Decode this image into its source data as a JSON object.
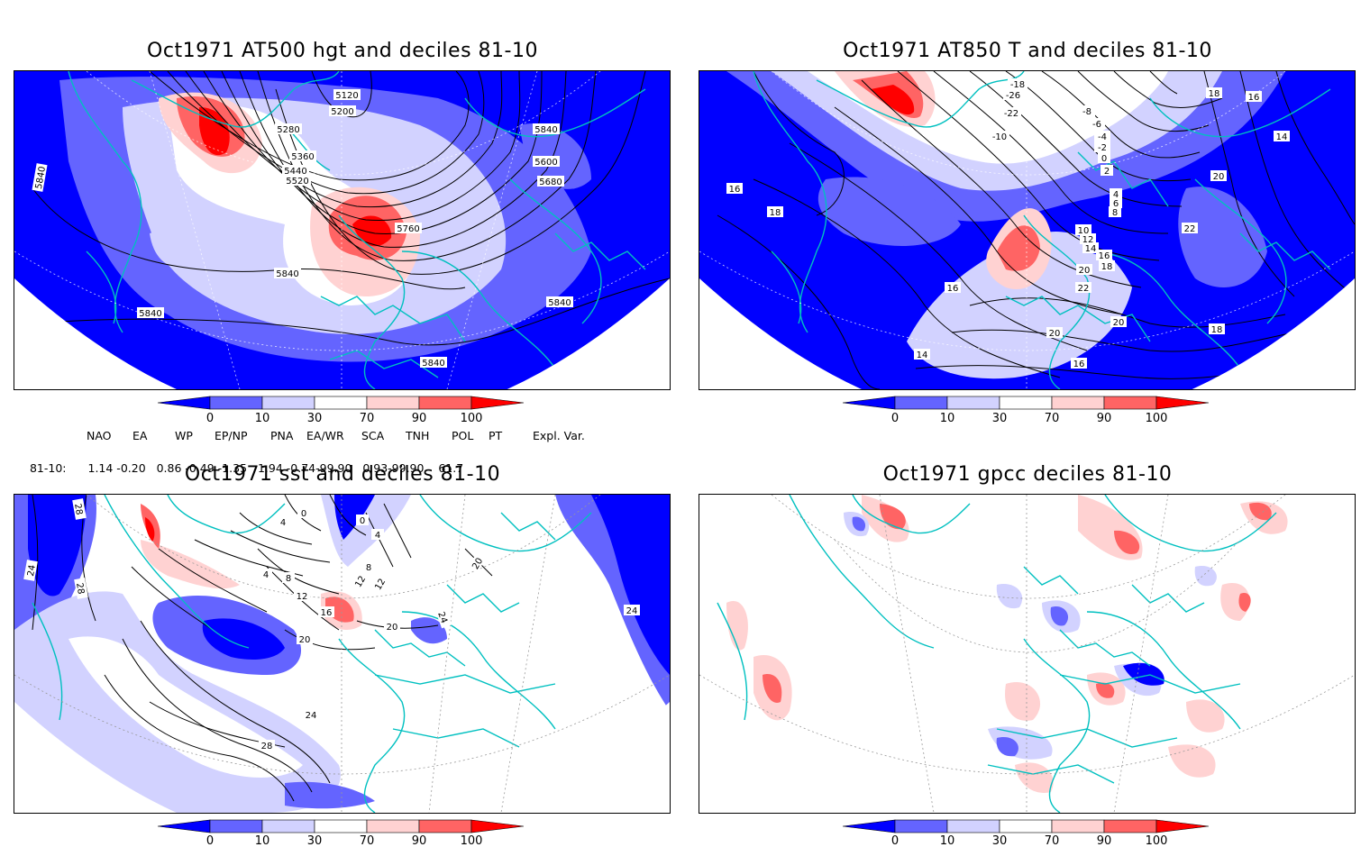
{
  "panels": [
    {
      "title": "Oct1971 AT500 hgt and deciles 81-10",
      "contour_labels": [
        "5120",
        "5200",
        "5280",
        "5360",
        "5440",
        "5520",
        "5600",
        "5680",
        "5760",
        "5840",
        "5840",
        "5840",
        "5840",
        "5840",
        "5840"
      ]
    },
    {
      "title": "Oct1971 AT850 T and deciles 81-10",
      "contour_labels": [
        "-18",
        "-26",
        "-22",
        "-10",
        "-8",
        "-6",
        "-4",
        "-2",
        "0",
        "2",
        "4",
        "6",
        "8",
        "10",
        "12",
        "14",
        "16",
        "16",
        "16",
        "18",
        "18",
        "18",
        "20",
        "20",
        "20",
        "20",
        "22",
        "22",
        "16",
        "14",
        "14",
        "16",
        "18"
      ]
    },
    {
      "title": "Oct1971 sst and deciles 81-10",
      "contour_labels": [
        "28",
        "24",
        "28",
        "4",
        "0",
        "4",
        "8",
        "12",
        "16",
        "20",
        "20",
        "24",
        "24",
        "28",
        "0",
        "4",
        "8",
        "12",
        "12",
        "20",
        "24"
      ]
    },
    {
      "title": "Oct1971 gpcc deciles 81-10",
      "contour_labels": []
    }
  ],
  "colorbar": {
    "ticks": [
      "0",
      "10",
      "30",
      "70",
      "90",
      "100"
    ],
    "colors": [
      "#0000ff",
      "#6464ff",
      "#d2d2ff",
      "#ffffff",
      "#ffd2d2",
      "#ff6464",
      "#ff0000"
    ]
  },
  "indices": {
    "headers": [
      "NAO",
      "EA",
      "WP",
      "EP/NP",
      "PNA",
      "EA/WR",
      "SCA",
      "TNH",
      "POL",
      "PT",
      "Expl. Var."
    ],
    "row_label": "81-10:",
    "values_line": "1.14 -0.20   0.86 -0.49 -1.35   1.94 -0.74-99.90   0.93-99.90    61.7"
  }
}
